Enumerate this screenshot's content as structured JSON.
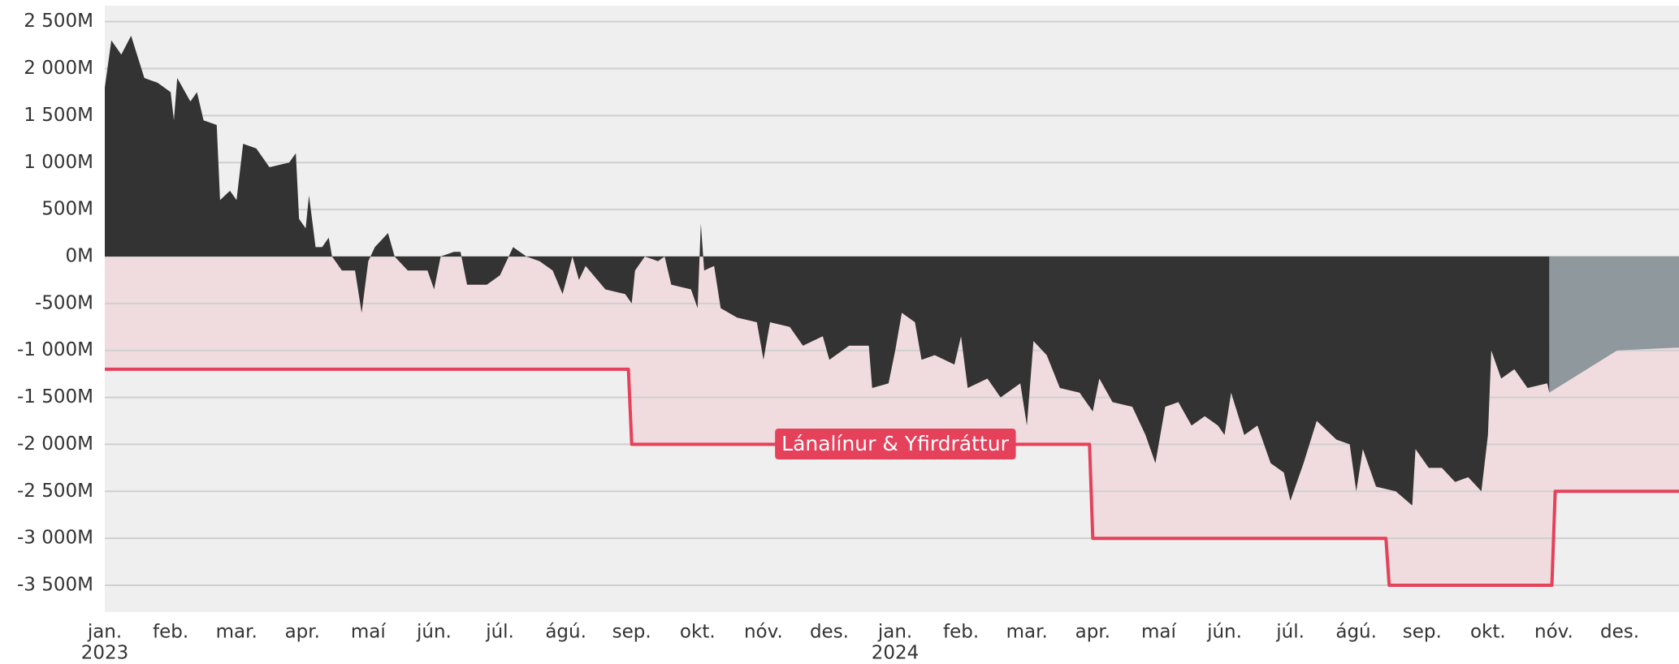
{
  "chart_data": {
    "type": "area",
    "xlim": [
      0,
      23.9
    ],
    "xticks": [
      {
        "value": 0,
        "label": "jan."
      },
      {
        "value": 1,
        "label": "feb."
      },
      {
        "value": 2,
        "label": "mar."
      },
      {
        "value": 3,
        "label": "apr."
      },
      {
        "value": 4,
        "label": "maí"
      },
      {
        "value": 5,
        "label": "jún."
      },
      {
        "value": 6,
        "label": "júl."
      },
      {
        "value": 7,
        "label": "ágú."
      },
      {
        "value": 8,
        "label": "sep."
      },
      {
        "value": 9,
        "label": "okt."
      },
      {
        "value": 10,
        "label": "nóv."
      },
      {
        "value": 11,
        "label": "des."
      },
      {
        "value": 12,
        "label": "jan."
      },
      {
        "value": 13,
        "label": "feb."
      },
      {
        "value": 14,
        "label": "mar."
      },
      {
        "value": 15,
        "label": "apr."
      },
      {
        "value": 16,
        "label": "maí"
      },
      {
        "value": 17,
        "label": "jún."
      },
      {
        "value": 18,
        "label": "júl."
      },
      {
        "value": 19,
        "label": "ágú."
      },
      {
        "value": 20,
        "label": "sep."
      },
      {
        "value": 21,
        "label": "okt."
      },
      {
        "value": 22,
        "label": "nóv."
      },
      {
        "value": 23,
        "label": "des."
      }
    ],
    "year_labels": [
      {
        "value": 0,
        "label": "2023"
      },
      {
        "value": 12,
        "label": "2024"
      }
    ],
    "ylim": [
      -3785,
      2670
    ],
    "yticks": [
      {
        "value": 2500,
        "label": "2 500M"
      },
      {
        "value": 2000,
        "label": "2 000M"
      },
      {
        "value": 1500,
        "label": "1 500M"
      },
      {
        "value": 1000,
        "label": "1 000M"
      },
      {
        "value": 500,
        "label": "500M"
      },
      {
        "value": 0,
        "label": "0M"
      },
      {
        "value": -500,
        "label": "-500M"
      },
      {
        "value": -1000,
        "label": "-1 000M"
      },
      {
        "value": -1500,
        "label": "-1 500M"
      },
      {
        "value": -2000,
        "label": "-2 000M"
      },
      {
        "value": -2500,
        "label": "-2 500M"
      },
      {
        "value": -3000,
        "label": "-3 000M"
      },
      {
        "value": -3500,
        "label": "-3 500M"
      }
    ],
    "grid": true,
    "series": [
      {
        "type": "line",
        "color": "#e5415a",
        "fill_color": "#f0dcdf",
        "x": [
          0,
          7.95,
          8.0,
          14.95,
          15.0,
          19.45,
          19.5,
          21.97,
          22.02,
          23.9
        ],
        "values": [
          -1200,
          -1200,
          -2000,
          -2000,
          -3000,
          -3000,
          -3500,
          -3500,
          -2500,
          -2500
        ]
      },
      {
        "type": "area",
        "color": "#8f999d",
        "x": [
          21.93,
          22.96,
          23.9
        ],
        "values": [
          -1450,
          -1000,
          -970
        ]
      },
      {
        "type": "area",
        "color": "#333333",
        "x": [
          0,
          0.1,
          0.25,
          0.4,
          0.6,
          0.8,
          1.0,
          1.05,
          1.1,
          1.3,
          1.4,
          1.5,
          1.7,
          1.75,
          1.9,
          2.0,
          2.1,
          2.3,
          2.5,
          2.8,
          2.9,
          2.95,
          3.05,
          3.1,
          3.2,
          3.3,
          3.4,
          3.45,
          3.6,
          3.8,
          3.9,
          4.0,
          4.1,
          4.3,
          4.4,
          4.6,
          4.9,
          5.0,
          5.1,
          5.3,
          5.4,
          5.5,
          5.8,
          6.0,
          6.2,
          6.4,
          6.6,
          6.8,
          6.95,
          7.1,
          7.2,
          7.3,
          7.6,
          7.9,
          8.0,
          8.05,
          8.2,
          8.4,
          8.5,
          8.6,
          8.9,
          9.0,
          9.05,
          9.1,
          9.25,
          9.35,
          9.6,
          9.9,
          10.0,
          10.1,
          10.4,
          10.6,
          10.9,
          11.0,
          11.3,
          11.6,
          11.65,
          11.9,
          12.0,
          12.1,
          12.3,
          12.4,
          12.6,
          12.9,
          13.0,
          13.1,
          13.4,
          13.6,
          13.9,
          14.0,
          14.1,
          14.3,
          14.5,
          14.8,
          15.0,
          15.1,
          15.3,
          15.6,
          15.8,
          15.95,
          16.1,
          16.3,
          16.5,
          16.7,
          16.9,
          17.0,
          17.1,
          17.3,
          17.5,
          17.7,
          17.9,
          18.0,
          18.2,
          18.4,
          18.7,
          18.9,
          19.0,
          19.1,
          19.3,
          19.6,
          19.85,
          19.9,
          20.1,
          20.3,
          20.5,
          20.7,
          20.9,
          21.0,
          21.05,
          21.2,
          21.4,
          21.6,
          21.9,
          21.93
        ],
        "values": [
          1800,
          2300,
          2150,
          2350,
          1900,
          1850,
          1750,
          1450,
          1900,
          1650,
          1750,
          1450,
          1400,
          600,
          700,
          600,
          1200,
          1150,
          950,
          1000,
          1100,
          400,
          300,
          650,
          100,
          100,
          200,
          0,
          -150,
          -150,
          -600,
          -50,
          100,
          250,
          0,
          -150,
          -150,
          -350,
          0,
          50,
          50,
          -300,
          -300,
          -200,
          100,
          0,
          -50,
          -150,
          -400,
          0,
          -250,
          -100,
          -350,
          -400,
          -500,
          -150,
          0,
          -50,
          0,
          -300,
          -350,
          -550,
          350,
          -150,
          -100,
          -550,
          -650,
          -700,
          -1100,
          -700,
          -750,
          -950,
          -850,
          -1100,
          -950,
          -950,
          -1400,
          -1350,
          -1000,
          -600,
          -700,
          -1100,
          -1050,
          -1150,
          -850,
          -1400,
          -1300,
          -1500,
          -1350,
          -1800,
          -900,
          -1050,
          -1400,
          -1450,
          -1650,
          -1300,
          -1550,
          -1600,
          -1900,
          -2200,
          -1600,
          -1550,
          -1800,
          -1700,
          -1800,
          -1900,
          -1450,
          -1900,
          -1800,
          -2200,
          -2300,
          -2600,
          -2200,
          -1750,
          -1950,
          -2000,
          -2500,
          -2050,
          -2450,
          -2500,
          -2650,
          -2050,
          -2250,
          -2250,
          -2400,
          -2350,
          -2500,
          -1900,
          -1000,
          -1300,
          -1200,
          -1400,
          -1350,
          -1450
        ]
      }
    ],
    "annotation": {
      "text": "Lánalínur & Yfirdráttur",
      "color": "#e5415a"
    }
  }
}
